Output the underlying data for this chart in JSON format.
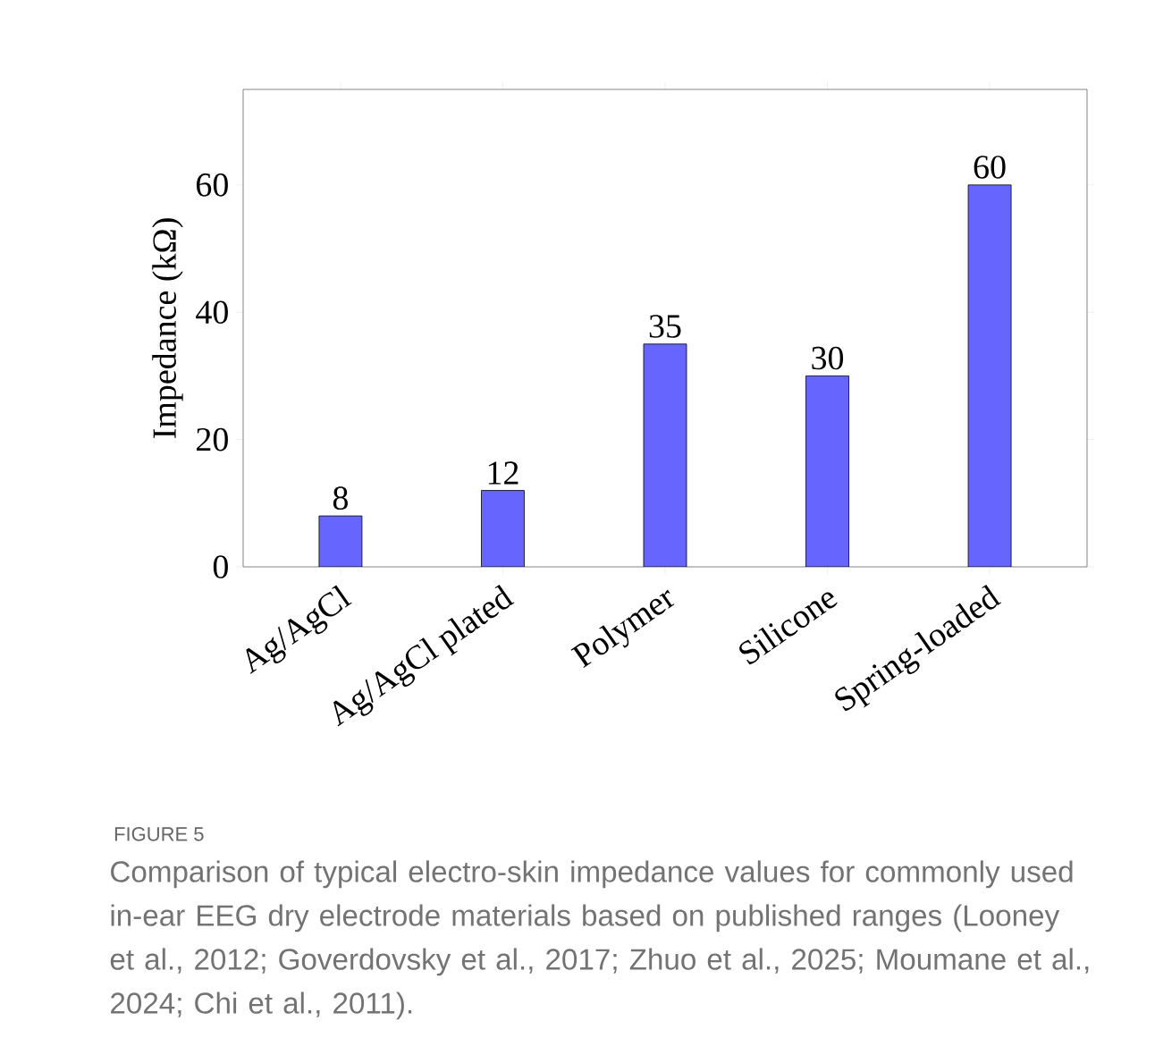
{
  "chart_data": {
    "type": "bar",
    "ylabel": "Impedance (kΩ)",
    "categories": [
      "Ag/AgCl",
      "Ag/AgCl plated",
      "Polymer",
      "Silicone",
      "Spring-loaded"
    ],
    "values": [
      8,
      12,
      35,
      30,
      60
    ],
    "color": "#6666ff",
    "ylim": [
      0,
      75
    ],
    "yticks": [
      0,
      20,
      40,
      60
    ],
    "data_labels": true,
    "annotations": [
      "FIGURE 5",
      "Comparison of typical electro-skin impedance values for commonly used in-ear EEG dry electrode materials based on published ranges (Looney et al., 2012; Goverdovsky et al., 2017; Zhuo et al., 2025; Moumane et al., 2024; Chi et al., 2011)."
    ]
  }
}
